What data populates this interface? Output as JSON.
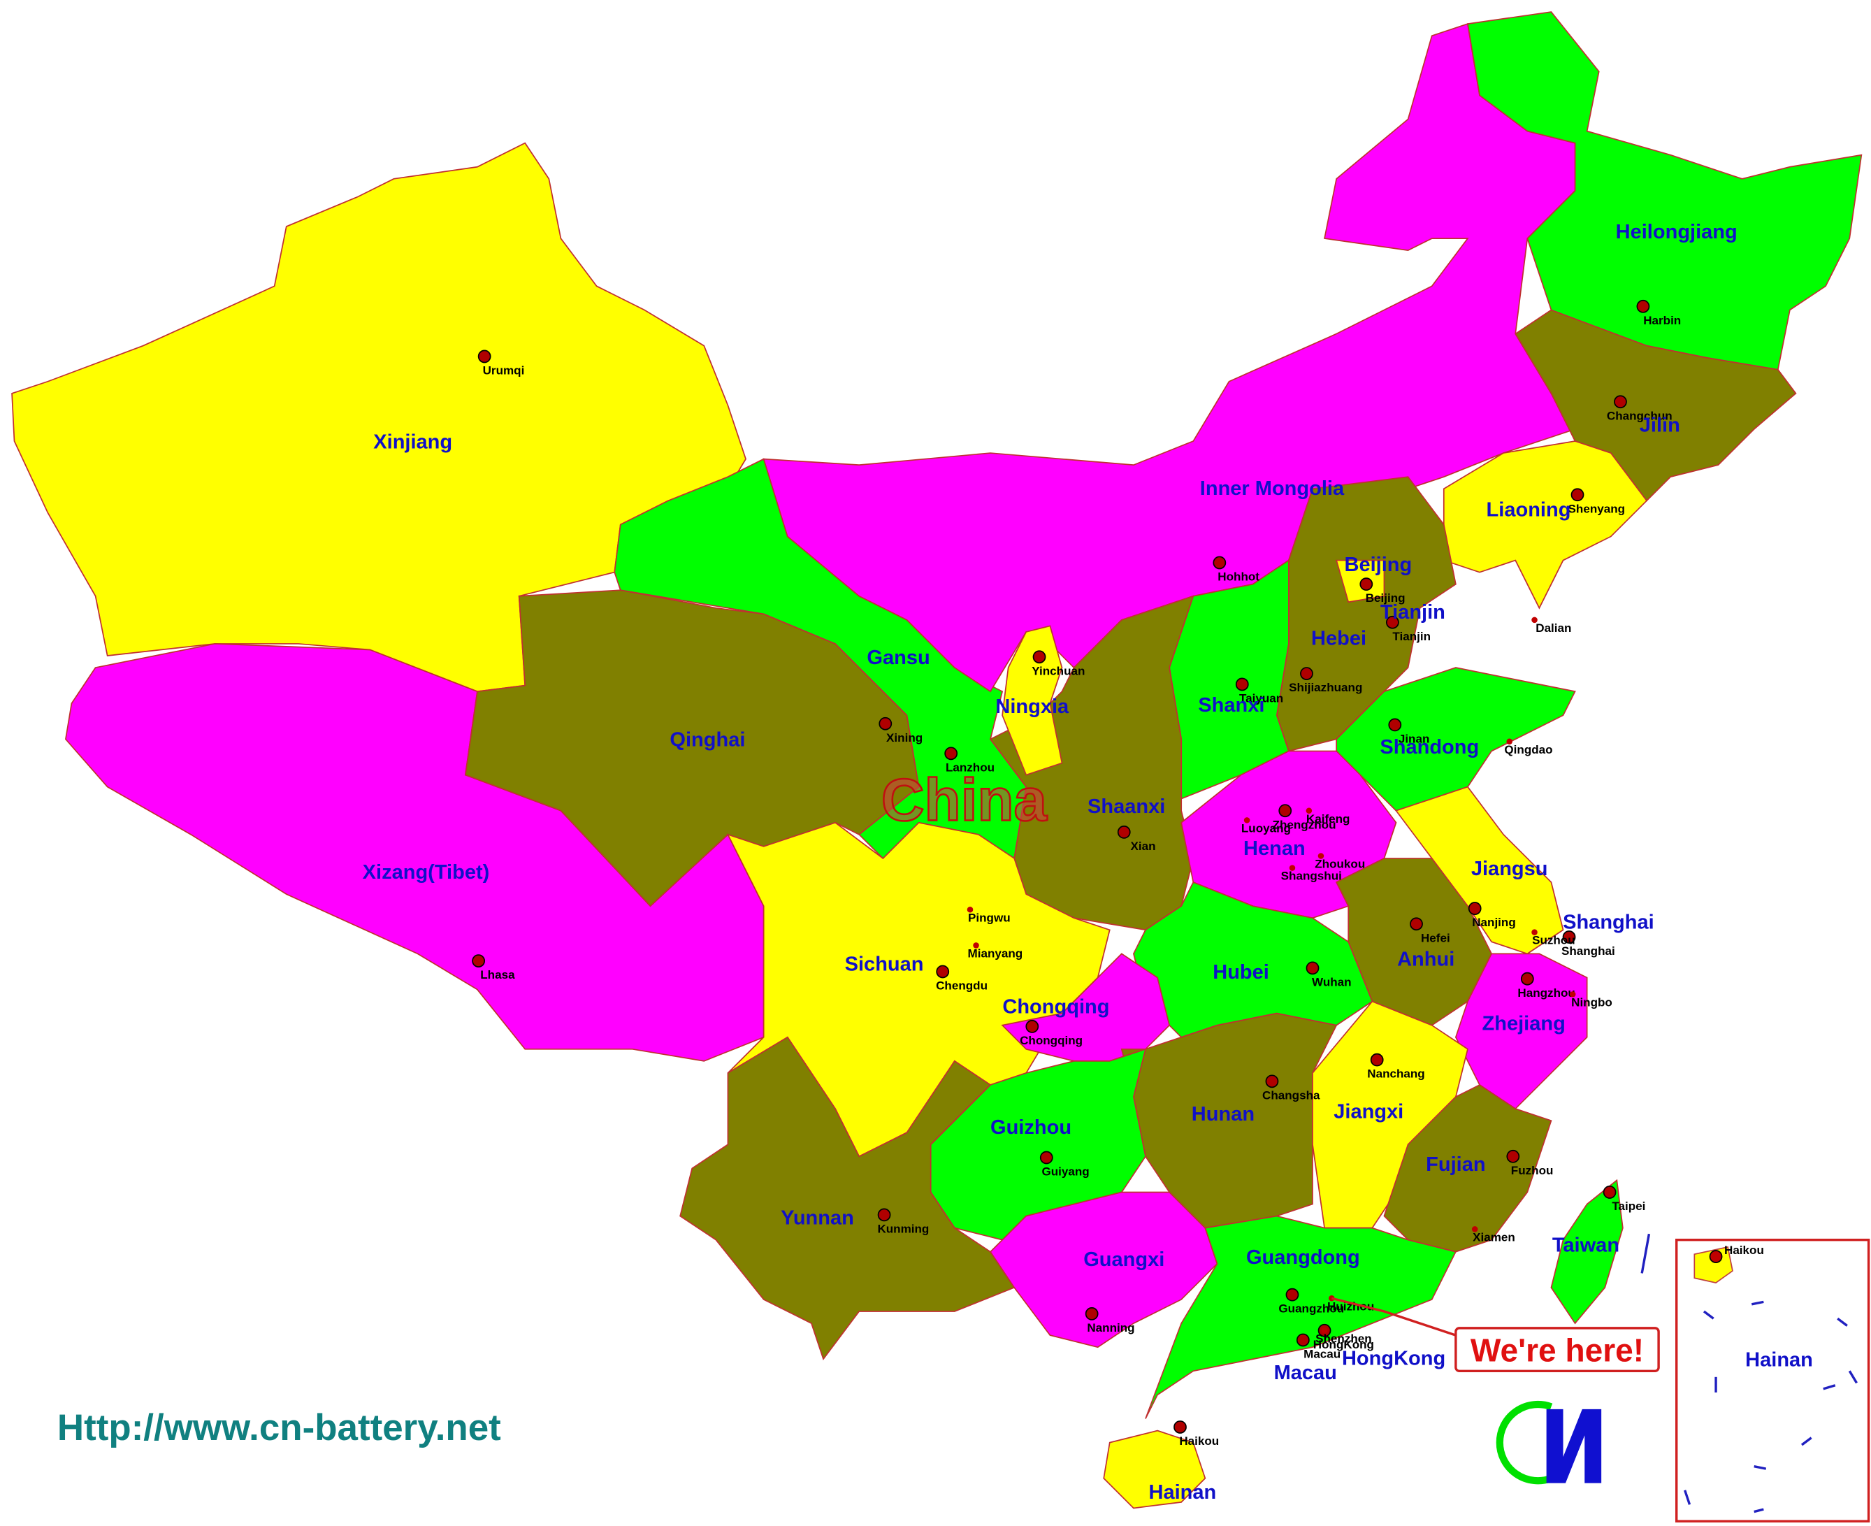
{
  "map": {
    "title": "China",
    "url": "Http://www.cn-battery.net",
    "callout": "We're here!",
    "provinces": [
      {
        "name": "Xinjiang",
        "capital": "Urumqi"
      },
      {
        "name": "Xizang(Tibet)",
        "capital": "Lhasa"
      },
      {
        "name": "Qinghai",
        "capital": "Xining"
      },
      {
        "name": "Gansu",
        "capital": "Lanzhou"
      },
      {
        "name": "Inner Mongolia",
        "capital": "Hohhot"
      },
      {
        "name": "Heilongjiang",
        "capital": "Harbin"
      },
      {
        "name": "Jilin",
        "capital": "Changchun"
      },
      {
        "name": "Liaoning",
        "capital": "Shenyang"
      },
      {
        "name": "Hebei",
        "capital": "Shijiazhuang"
      },
      {
        "name": "Beijing",
        "capital": "Beijing"
      },
      {
        "name": "Tianjin",
        "capital": "Tianjin"
      },
      {
        "name": "Shanxi",
        "capital": "Taiyuan"
      },
      {
        "name": "Shaanxi",
        "capital": "Xian"
      },
      {
        "name": "Ningxia",
        "capital": "Yinchuan"
      },
      {
        "name": "Shandong",
        "capital": "Jinan"
      },
      {
        "name": "Henan",
        "capital": "Zhengzhou"
      },
      {
        "name": "Jiangsu",
        "capital": "Nanjing"
      },
      {
        "name": "Anhui",
        "capital": "Hefei"
      },
      {
        "name": "Shanghai",
        "capital": "Shanghai"
      },
      {
        "name": "Zhejiang",
        "capital": "Hangzhou"
      },
      {
        "name": "Hubei",
        "capital": "Wuhan"
      },
      {
        "name": "Sichuan",
        "capital": "Chengdu"
      },
      {
        "name": "Chongqing",
        "capital": "Chongqing"
      },
      {
        "name": "Hunan",
        "capital": "Changsha"
      },
      {
        "name": "Jiangxi",
        "capital": "Nanchang"
      },
      {
        "name": "Fujian",
        "capital": "Fuzhou"
      },
      {
        "name": "Guizhou",
        "capital": "Guiyang"
      },
      {
        "name": "Yunnan",
        "capital": "Kunming"
      },
      {
        "name": "Guangxi",
        "capital": "Nanning"
      },
      {
        "name": "Guangdong",
        "capital": "Guangzhou"
      },
      {
        "name": "HongKong",
        "capital": "HongKong"
      },
      {
        "name": "Macau",
        "capital": "Macau"
      },
      {
        "name": "Hainan",
        "capital": "Haikou"
      },
      {
        "name": "Taiwan",
        "capital": "Taipei"
      }
    ],
    "cities": [
      "Dalian",
      "Qingdao",
      "Kaifeng",
      "Luoyang",
      "Zhoukou",
      "Shangshui",
      "Pingwu",
      "Mianyang",
      "Suzhou",
      "Ningbo",
      "Xiamen",
      "Huizhou",
      "Shenzhen"
    ],
    "inset": {
      "label": "Hainan",
      "city": "Haikou"
    }
  }
}
